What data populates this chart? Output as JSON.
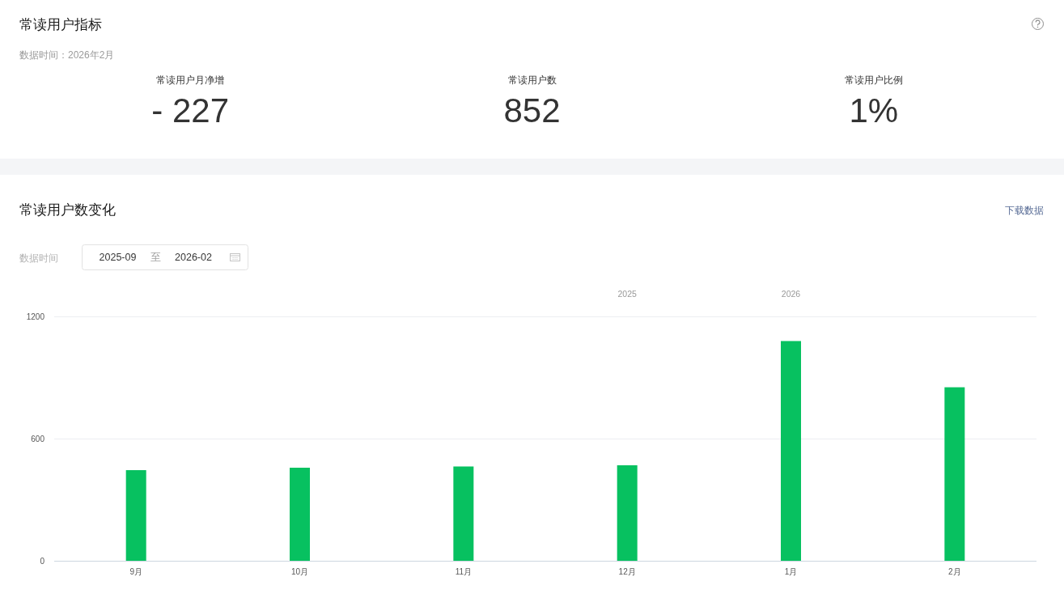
{
  "chart_data": [
    {
      "type": "other",
      "title": "常读用户指标",
      "subtitle": "数据时间：2026年2月",
      "annotations": [
        "常读用户月净增",
        "- 227",
        "常读用户数",
        "852",
        "常读用户比例",
        "1%"
      ]
    },
    {
      "type": "bar",
      "title": "常读用户数变化",
      "annotations": [
        "下载数据",
        "数据时间",
        "2025-09",
        "至",
        "2026-02",
        "2025",
        "2026"
      ],
      "categories": [
        "9月",
        "10月",
        "11月",
        "12月",
        "1月",
        "2月"
      ],
      "values": [
        445,
        457,
        463,
        469,
        1079,
        852
      ],
      "color": "#07c160",
      "ylim": [
        0,
        1200
      ],
      "yticks": [
        0,
        600,
        1200
      ],
      "grid": "y"
    }
  ]
}
